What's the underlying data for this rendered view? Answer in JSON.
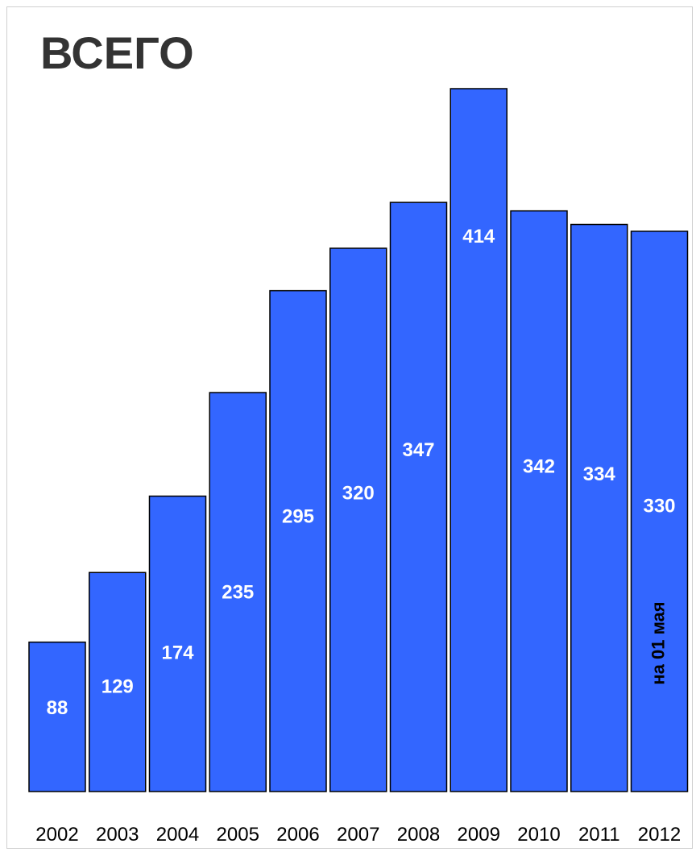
{
  "chart_data": {
    "type": "bar",
    "title": "ВСЕГО",
    "categories": [
      "2002",
      "2003",
      "2004",
      "2005",
      "2006",
      "2007",
      "2008",
      "2009",
      "2010",
      "2011",
      "2012"
    ],
    "values": [
      88,
      129,
      174,
      235,
      295,
      320,
      347,
      414,
      342,
      334,
      330
    ],
    "annotations": [
      {
        "category": "2012",
        "text": "на 01 мая"
      }
    ],
    "colors": {
      "bar": "#3366ff",
      "outline": "#000000",
      "value_label": "#ffffff"
    },
    "grid": false,
    "legend": "none"
  }
}
